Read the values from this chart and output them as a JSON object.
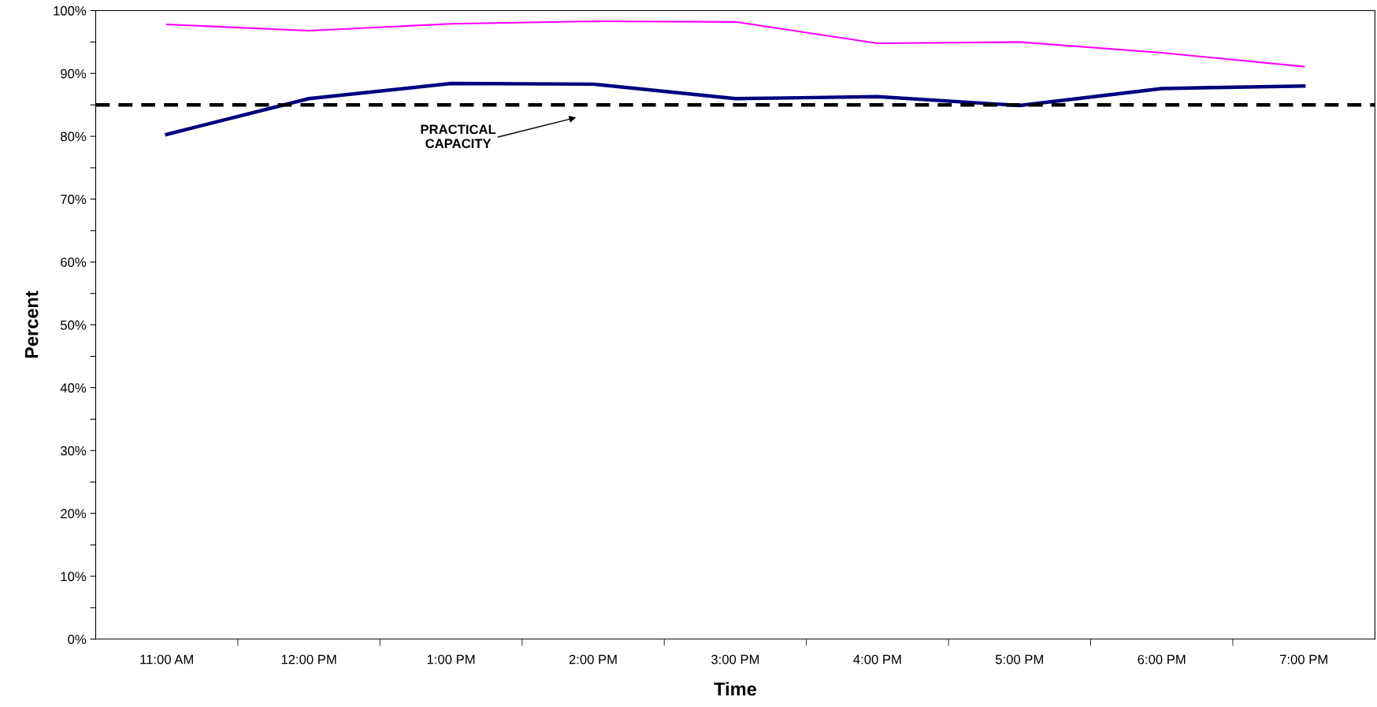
{
  "chart_data": {
    "type": "line",
    "xlabel": "Time",
    "ylabel": "Percent",
    "categories": [
      "11:00 AM",
      "12:00 PM",
      "1:00 PM",
      "2:00 PM",
      "3:00 PM",
      "4:00 PM",
      "5:00 PM",
      "6:00 PM",
      "7:00 PM"
    ],
    "series": [
      {
        "color": "#ff00ff",
        "values": [
          97.8,
          96.8,
          97.9,
          98.3,
          98.2,
          94.8,
          95.0,
          93.3,
          91.1
        ]
      },
      {
        "color": "#000080",
        "values": [
          80.3,
          86.0,
          88.4,
          88.3,
          86.0,
          86.3,
          84.9,
          87.6,
          88.0
        ]
      }
    ],
    "ylim": [
      0,
      100
    ],
    "yticks": [
      {
        "value": 0,
        "label": "0%"
      },
      {
        "value": 5,
        "label": null
      },
      {
        "value": 10,
        "label": "10%"
      },
      {
        "value": 15,
        "label": null
      },
      {
        "value": 20,
        "label": "20%"
      },
      {
        "value": 25,
        "label": null
      },
      {
        "value": 30,
        "label": "30%"
      },
      {
        "value": 35,
        "label": null
      },
      {
        "value": 40,
        "label": "40%"
      },
      {
        "value": 45,
        "label": null
      },
      {
        "value": 50,
        "label": "50%"
      },
      {
        "value": 55,
        "label": null
      },
      {
        "value": 60,
        "label": "60%"
      },
      {
        "value": 65,
        "label": null
      },
      {
        "value": 70,
        "label": "70%"
      },
      {
        "value": 75,
        "label": null
      },
      {
        "value": 80,
        "label": "80%"
      },
      {
        "value": 85,
        "label": null
      },
      {
        "value": 90,
        "label": "90%"
      },
      {
        "value": 95,
        "label": null
      },
      {
        "value": 100,
        "label": "100%"
      }
    ],
    "ref_lines": [
      {
        "axis": "y",
        "value": 85,
        "color": "#000000",
        "line_style": "dashed"
      }
    ],
    "annotations": [
      "PRACTICAL\nCAPACITY"
    ],
    "grid": false,
    "marker": "none",
    "line_style": "solid"
  }
}
